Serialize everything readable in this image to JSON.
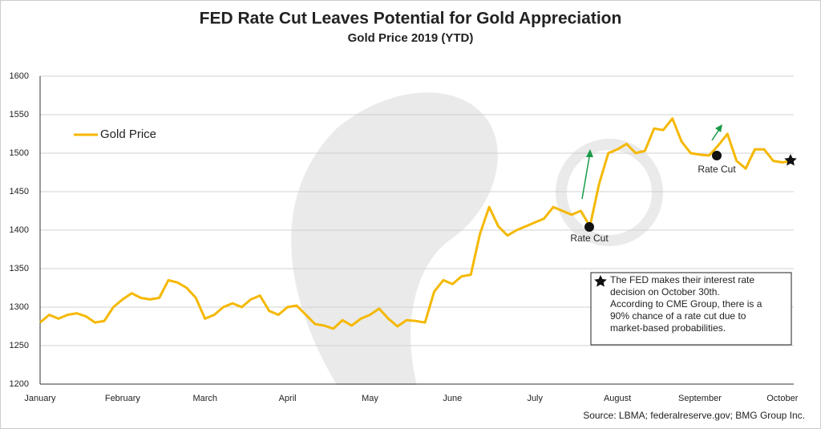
{
  "chart_data": {
    "type": "line",
    "title": "FED Rate Cut Leaves Potential for Gold Appreciation",
    "subtitle": "Gold Price 2019 (YTD)",
    "categories": [
      "January",
      null,
      null,
      null,
      null,
      null,
      null,
      null,
      null,
      "February",
      null,
      null,
      null,
      null,
      null,
      null,
      null,
      null,
      "March",
      null,
      null,
      null,
      null,
      null,
      null,
      null,
      null,
      "April",
      null,
      null,
      null,
      null,
      null,
      null,
      null,
      null,
      "May",
      null,
      null,
      null,
      null,
      null,
      null,
      null,
      null,
      "June",
      null,
      null,
      null,
      null,
      null,
      null,
      null,
      null,
      "July",
      null,
      null,
      null,
      null,
      null,
      null,
      null,
      null,
      "August",
      null,
      null,
      null,
      null,
      null,
      null,
      null,
      null,
      "September",
      null,
      null,
      null,
      null,
      null,
      null,
      null,
      null,
      "October",
      null
    ],
    "series": [
      {
        "name": "Gold Price",
        "color": "#f5b800",
        "values": [
          1280,
          1290,
          1285,
          1290,
          1292,
          1288,
          1280,
          1282,
          1300,
          1310,
          1318,
          1312,
          1310,
          1312,
          1335,
          1332,
          1325,
          1312,
          1285,
          1290,
          1300,
          1305,
          1300,
          1310,
          1315,
          1295,
          1290,
          1300,
          1302,
          1290,
          1278,
          1276,
          1272,
          1283,
          1276,
          1285,
          1290,
          1298,
          1285,
          1275,
          1283,
          1282,
          1280,
          1320,
          1335,
          1330,
          1340,
          1342,
          1395,
          1430,
          1405,
          1393,
          1400,
          1405,
          1410,
          1415,
          1430,
          1425,
          1420,
          1425,
          1405,
          1460,
          1500,
          1505,
          1512,
          1500,
          1503,
          1532,
          1530,
          1545,
          1515,
          1500,
          1498,
          1497,
          1510,
          1525,
          1490,
          1480,
          1505,
          1505,
          1490,
          1488,
          1490
        ]
      }
    ],
    "ylim": [
      1200,
      1600
    ],
    "yticks": [
      1200,
      1250,
      1300,
      1350,
      1400,
      1450,
      1500,
      1550,
      1600
    ],
    "grid": true,
    "legend": "upper left",
    "annotations": [
      "Rate Cut",
      "Rate Cut"
    ],
    "note": [
      "The FED makes their interest rate",
      "decision on October 30th.",
      "According to CME Group, there is a",
      "90% chance of a rate cut due to",
      "market-based probabilities."
    ],
    "source": "Source: LBMA; federalreserve.gov; BMG Group Inc."
  }
}
